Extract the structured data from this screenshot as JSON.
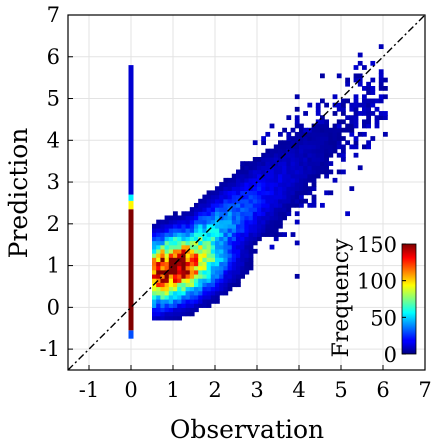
{
  "chart_data": {
    "type": "heatmap",
    "title": "",
    "xlabel": "Observation",
    "ylabel": "Prediction",
    "xlim": [
      -1.5,
      7
    ],
    "ylim": [
      -1.5,
      7
    ],
    "xticks": [
      "-1",
      "0",
      "1",
      "2",
      "3",
      "4",
      "5",
      "6",
      "7"
    ],
    "yticks": [
      "-1",
      "0",
      "1",
      "2",
      "3",
      "4",
      "5",
      "6",
      "7"
    ],
    "grid": true,
    "reference_line": {
      "style": "dash-dot",
      "color": "#000000",
      "from": [
        -1.5,
        -1.5
      ],
      "to": [
        7,
        7
      ]
    },
    "colorbar": {
      "label": "Frequency",
      "ticks": [
        "0",
        "50",
        "100",
        "150"
      ],
      "range": [
        0,
        150
      ],
      "colormap": "jet",
      "placement": "bottom-right inside axes"
    },
    "bin_size": 0.1,
    "zero_observation_column": {
      "x": 0,
      "segments": [
        {
          "y_from": -0.75,
          "y_to": -0.55,
          "frequency": 30
        },
        {
          "y_from": -0.55,
          "y_to": 2.35,
          "frequency": 150
        },
        {
          "y_from": 2.35,
          "y_to": 2.55,
          "frequency": 95
        },
        {
          "y_from": 2.55,
          "y_to": 2.7,
          "frequency": 55
        },
        {
          "y_from": 2.7,
          "y_to": 5.8,
          "frequency": 12
        }
      ]
    },
    "density_model": {
      "x_range": [
        0.5,
        6.0
      ],
      "trend_slope": 0.82,
      "trend_intercept": 0.1,
      "peak": [
        1.0,
        0.95
      ],
      "peak_frequency": 150,
      "spread_start": 0.38,
      "spread_growth": 0.06
    }
  },
  "colors": {
    "background": "#ffffff",
    "grid": "#e3e3e3",
    "axis": "#000000"
  }
}
